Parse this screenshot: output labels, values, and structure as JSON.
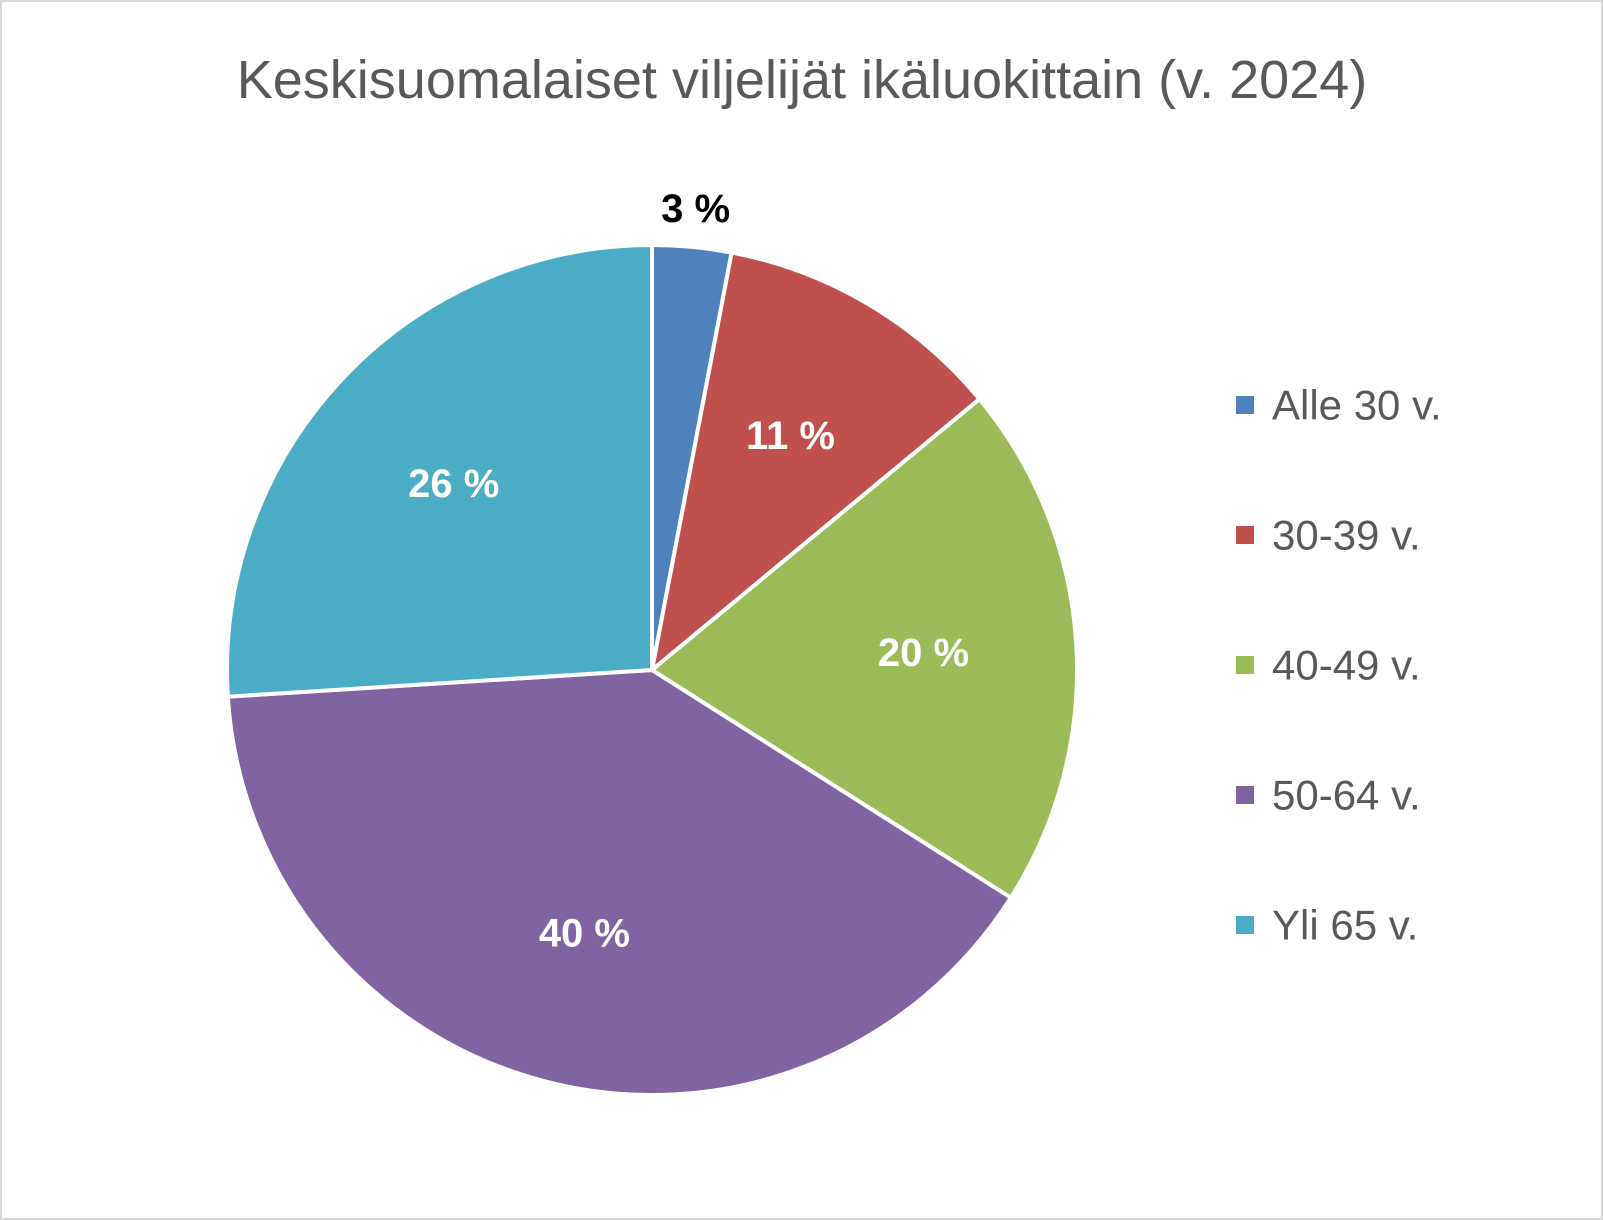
{
  "chart_data": {
    "type": "pie",
    "title": "Keskisuomalaiset viljelijät ikäluokittain (v. 2024)",
    "legend_position": "right",
    "start_angle_deg": 0,
    "direction": "clockwise",
    "slices": [
      {
        "name": "Alle 30 v.",
        "value": 3,
        "label": "3 %",
        "color": "#4f81bd",
        "label_color": "#000000",
        "label_outside": true
      },
      {
        "name": "30-39 v.",
        "value": 11,
        "label": "11 %",
        "color": "#c0504d",
        "label_color": "#ffffff",
        "label_outside": false
      },
      {
        "name": "40-49 v.",
        "value": 20,
        "label": "20 %",
        "color": "#9bbb59",
        "label_color": "#ffffff",
        "label_outside": false
      },
      {
        "name": "50-64 v.",
        "value": 40,
        "label": "40 %",
        "color": "#8064a2",
        "label_color": "#ffffff",
        "label_outside": false
      },
      {
        "name": "Yli 65 v.",
        "value": 26,
        "label": "26 %",
        "color": "#4bacc6",
        "label_color": "#ffffff",
        "label_outside": false
      }
    ]
  }
}
